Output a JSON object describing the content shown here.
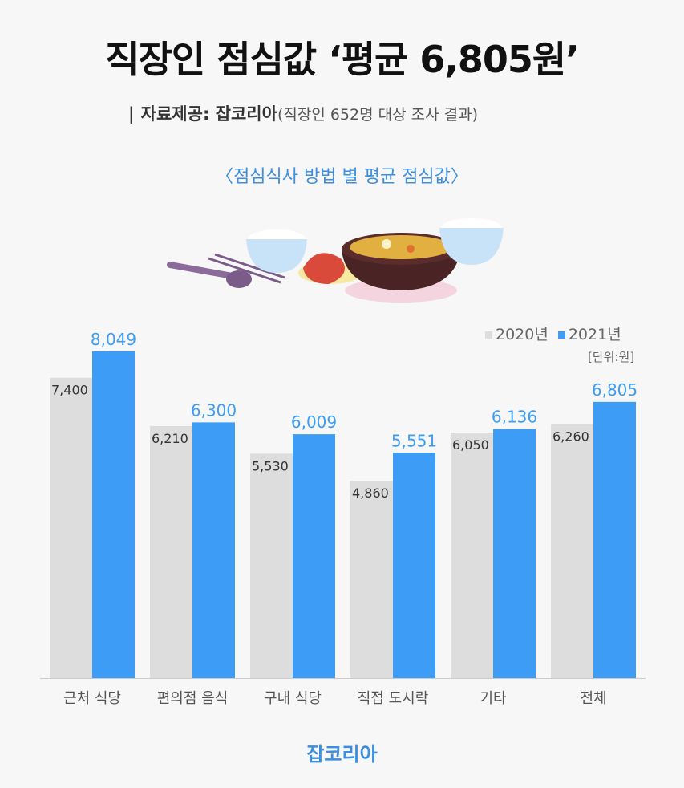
{
  "header": {
    "title": "직장인 점심값 ‘평균 6,805원’",
    "source_bar": "|",
    "source_label": "자료제공: 잡코리아",
    "source_note": "(직장인 652명 대상 조사 결과)"
  },
  "subtitle": "〈점심식사 방법 별 평균 점심값〉",
  "legend": {
    "unit": "[단위:원]",
    "items": [
      {
        "label": "2020년",
        "color": "#dddddd"
      },
      {
        "label": "2021년",
        "color": "#3d9df6"
      }
    ]
  },
  "footer": {
    "brand": "잡코리아"
  },
  "chart_data": {
    "type": "bar",
    "categories": [
      "근처 식당",
      "편의점 음식",
      "구내 식당",
      "직접 도시락",
      "기타",
      "전체"
    ],
    "series": [
      {
        "name": "2020년",
        "values": [
          7400,
          6210,
          5530,
          4860,
          6050,
          6260
        ],
        "labels": [
          "7,400",
          "6,210",
          "5,530",
          "4,860",
          "6,050",
          "6,260"
        ],
        "color": "#dddddd",
        "label_color": "#333333"
      },
      {
        "name": "2021년",
        "values": [
          8049,
          6300,
          6009,
          5551,
          6136,
          6805
        ],
        "labels": [
          "8,049",
          "6,300",
          "6,009",
          "5,551",
          "6,136",
          "6,805"
        ],
        "color": "#3d9df6",
        "label_color": "#3d9df6"
      }
    ],
    "ylim": [
      0,
      8700
    ],
    "grid": false,
    "legend_position": "top-right"
  }
}
